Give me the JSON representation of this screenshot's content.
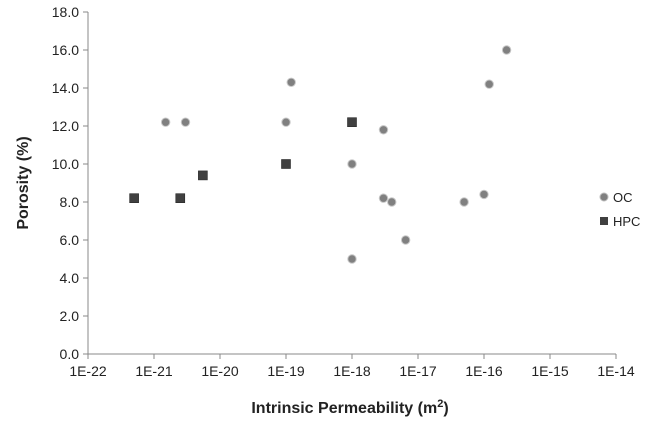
{
  "chart_data": {
    "type": "scatter",
    "title": "",
    "xlabel": "Intrinsic Permeability (m",
    "xlabel_sup": "2",
    "xlabel_end": ")",
    "ylabel": "Porosity (%)",
    "x_scale": "log",
    "xlim": [
      1e-22,
      1e-14
    ],
    "ylim": [
      0,
      18
    ],
    "x_ticks": [
      "1E-22",
      "1E-21",
      "1E-20",
      "1E-19",
      "1E-18",
      "1E-17",
      "1E-16",
      "1E-15",
      "1E-14"
    ],
    "y_ticks": [
      "0.0",
      "2.0",
      "4.0",
      "6.0",
      "8.0",
      "10.0",
      "12.0",
      "14.0",
      "16.0",
      "18.0"
    ],
    "grid": false,
    "legend": "right",
    "series": [
      {
        "name": "OC",
        "marker": "circle",
        "color": "#808080",
        "points": [
          [
            1.5e-21,
            12.2
          ],
          [
            3e-21,
            12.2
          ],
          [
            1e-19,
            12.2
          ],
          [
            1.2e-19,
            14.3
          ],
          [
            1e-18,
            10.0
          ],
          [
            1e-18,
            5.0
          ],
          [
            3e-18,
            11.8
          ],
          [
            3e-18,
            8.2
          ],
          [
            4e-18,
            8.0
          ],
          [
            6.5e-18,
            6.0
          ],
          [
            5e-17,
            8.0
          ],
          [
            1e-16,
            8.4
          ],
          [
            1.2e-16,
            14.2
          ],
          [
            2.2e-16,
            16.0
          ]
        ]
      },
      {
        "name": "HPC",
        "marker": "square",
        "color": "#404040",
        "points": [
          [
            5e-22,
            8.2
          ],
          [
            2.5e-21,
            8.2
          ],
          [
            5.5e-21,
            9.4
          ],
          [
            1e-19,
            10.0
          ],
          [
            1e-18,
            12.2
          ]
        ]
      }
    ]
  }
}
